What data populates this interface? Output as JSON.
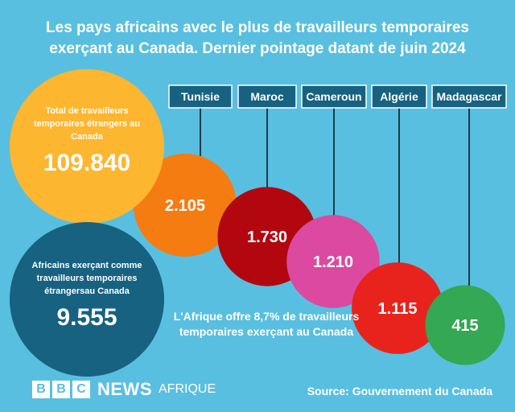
{
  "title_line1": "Les pays africains avec le plus de travailleurs temporaires",
  "title_line2": "exerçant au Canada. Dernier pointage datant de juin 2024",
  "total": {
    "label": "Total de travailleurs temporaires étrangers au Canada",
    "value": "109.840"
  },
  "africa": {
    "label": "Africains exerçant comme travailleurs temporaires étrangersau Canada",
    "value": "9.555"
  },
  "note": "L'Afrique offre 8,7% de travailleurs temporaires exerçant au Canada",
  "logo": {
    "b1": "B",
    "b2": "B",
    "b3": "C",
    "news": "NEWS",
    "sub": "AFRIQUE"
  },
  "source": "Source: Gouvernement du Canada",
  "chart_data": {
    "type": "bubble",
    "categories": [
      "Tunisie",
      "Maroc",
      "Cameroun",
      "Algérie",
      "Madagascar"
    ],
    "values": [
      2105,
      1730,
      1210,
      1115,
      415
    ],
    "value_labels": [
      "2.105",
      "1.730",
      "1.210",
      "1.115",
      "415"
    ],
    "colors": [
      "#f57c11",
      "#b30710",
      "#db4aa0",
      "#e8231d",
      "#34a853"
    ],
    "label_box_color": "#176181"
  }
}
